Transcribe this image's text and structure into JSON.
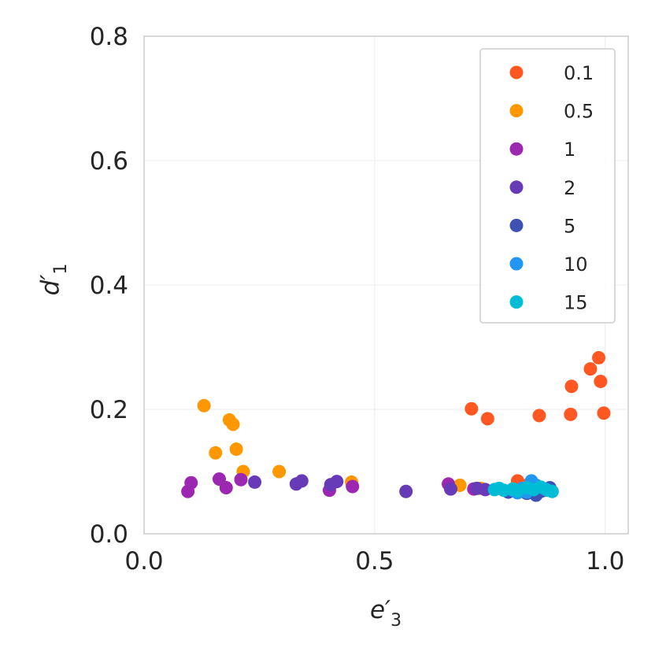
{
  "chart_data": {
    "type": "scatter",
    "xlabel": "e′",
    "xlabel_sub": "3",
    "ylabel": "d′",
    "ylabel_sub": "1",
    "xlim": [
      0.0,
      1.05
    ],
    "ylim": [
      0.0,
      0.8
    ],
    "xticks": [
      0.0,
      0.5,
      1.0
    ],
    "xtick_labels": [
      "0.0",
      "0.5",
      "1.0"
    ],
    "yticks": [
      0.0,
      0.2,
      0.4,
      0.6,
      0.8
    ],
    "ytick_labels": [
      "0.0",
      "0.2",
      "0.4",
      "0.6",
      "0.8"
    ],
    "grid": true,
    "legend_position": "top-right",
    "series": [
      {
        "name": "0.1",
        "color": "#ff5722",
        "points": [
          [
            0.71,
            0.201
          ],
          [
            0.745,
            0.185
          ],
          [
            0.857,
            0.19
          ],
          [
            0.925,
            0.192
          ],
          [
            0.927,
            0.237
          ],
          [
            0.968,
            0.265
          ],
          [
            0.986,
            0.283
          ],
          [
            0.99,
            0.245
          ],
          [
            0.997,
            0.194
          ],
          [
            0.81,
            0.085
          ],
          [
            0.82,
            0.078
          ],
          [
            0.8,
            0.072
          ]
        ]
      },
      {
        "name": "0.5",
        "color": "#ff9800",
        "points": [
          [
            0.13,
            0.206
          ],
          [
            0.185,
            0.183
          ],
          [
            0.193,
            0.176
          ],
          [
            0.155,
            0.13
          ],
          [
            0.2,
            0.136
          ],
          [
            0.215,
            0.1
          ],
          [
            0.293,
            0.1
          ],
          [
            0.45,
            0.083
          ],
          [
            0.685,
            0.078
          ],
          [
            0.73,
            0.073
          ]
        ]
      },
      {
        "name": "1",
        "color": "#9c27b0",
        "points": [
          [
            0.095,
            0.068
          ],
          [
            0.102,
            0.082
          ],
          [
            0.163,
            0.088
          ],
          [
            0.178,
            0.074
          ],
          [
            0.21,
            0.087
          ],
          [
            0.402,
            0.07
          ],
          [
            0.452,
            0.076
          ],
          [
            0.66,
            0.08
          ],
          [
            0.715,
            0.072
          ]
        ]
      },
      {
        "name": "2",
        "color": "#673ab7",
        "points": [
          [
            0.24,
            0.083
          ],
          [
            0.33,
            0.08
          ],
          [
            0.342,
            0.085
          ],
          [
            0.405,
            0.079
          ],
          [
            0.418,
            0.084
          ],
          [
            0.568,
            0.068
          ],
          [
            0.665,
            0.072
          ],
          [
            0.722,
            0.073
          ],
          [
            0.74,
            0.071
          ]
        ]
      },
      {
        "name": "5",
        "color": "#3f51b5",
        "points": [
          [
            0.79,
            0.067
          ],
          [
            0.83,
            0.065
          ],
          [
            0.85,
            0.062
          ],
          [
            0.87,
            0.07
          ],
          [
            0.88,
            0.074
          ],
          [
            0.82,
            0.072
          ],
          [
            0.86,
            0.068
          ],
          [
            0.84,
            0.071
          ]
        ]
      },
      {
        "name": "10",
        "color": "#2196f3",
        "points": [
          [
            0.8,
            0.07
          ],
          [
            0.82,
            0.073
          ],
          [
            0.84,
            0.085
          ],
          [
            0.85,
            0.078
          ],
          [
            0.83,
            0.067
          ],
          [
            0.87,
            0.072
          ],
          [
            0.81,
            0.066
          ]
        ]
      },
      {
        "name": "15",
        "color": "#00bcd4",
        "points": [
          [
            0.77,
            0.073
          ],
          [
            0.78,
            0.07
          ],
          [
            0.8,
            0.072
          ],
          [
            0.81,
            0.069
          ],
          [
            0.83,
            0.074
          ],
          [
            0.845,
            0.071
          ],
          [
            0.86,
            0.075
          ],
          [
            0.875,
            0.07
          ],
          [
            0.885,
            0.068
          ],
          [
            0.76,
            0.071
          ]
        ]
      }
    ]
  }
}
